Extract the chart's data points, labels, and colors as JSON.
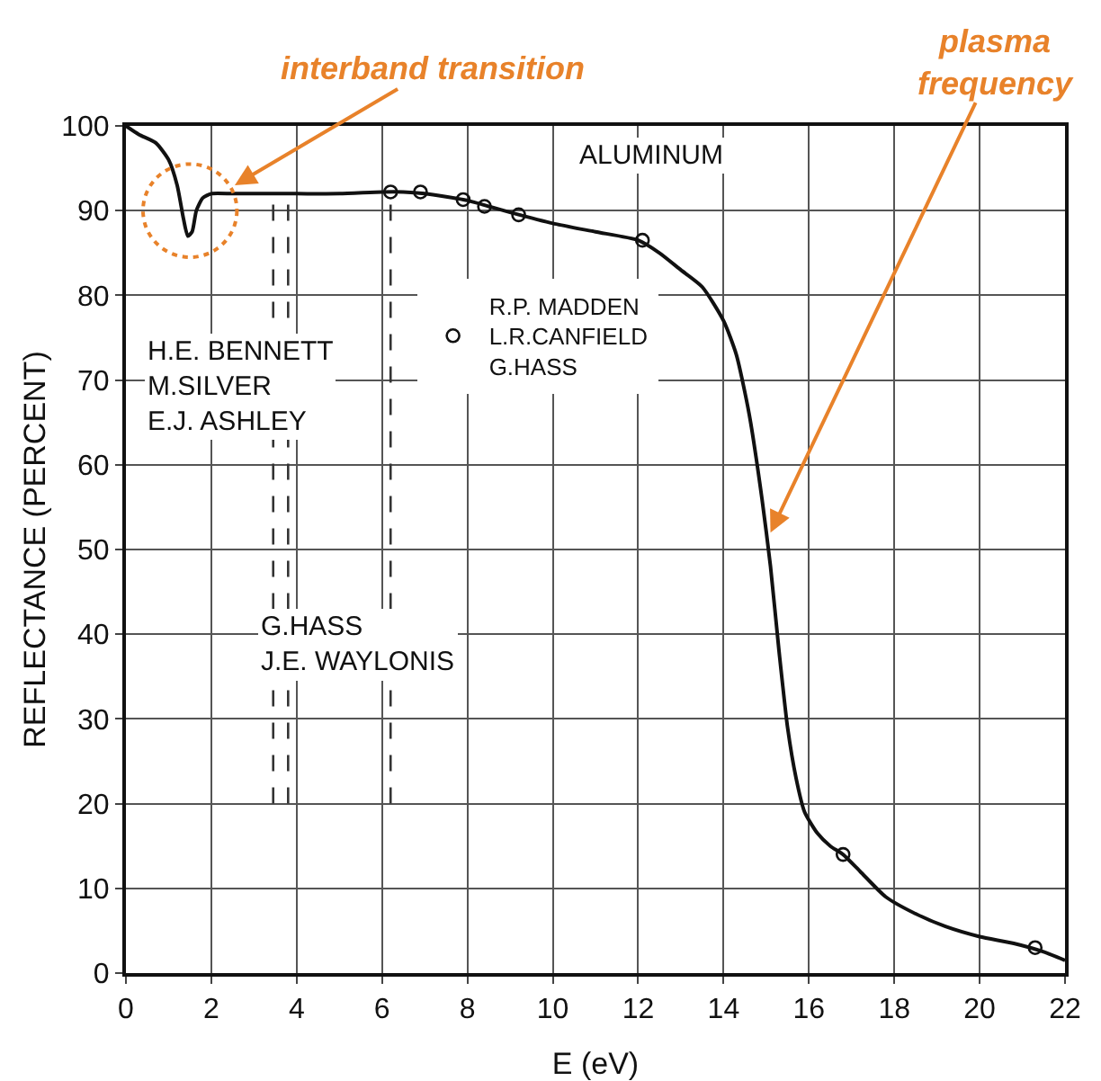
{
  "chart_data": {
    "type": "line",
    "title": "ALUMINUM",
    "xlabel": "E (eV)",
    "ylabel": "REFLECTANCE (PERCENT)",
    "xlim": [
      0,
      22
    ],
    "xticks": [
      0,
      2,
      4,
      6,
      8,
      10,
      12,
      14,
      16,
      18,
      20,
      22
    ],
    "ylim": [
      0,
      100
    ],
    "yticks": [
      0,
      10,
      20,
      30,
      40,
      50,
      60,
      70,
      80,
      90,
      100
    ],
    "grid": true,
    "legend": "top",
    "line_style": "solid",
    "series": [
      {
        "color": "#111111",
        "x": [
          0,
          0.3,
          0.7,
          1,
          1.2,
          1.35,
          1.45,
          1.55,
          1.65,
          1.8,
          2,
          2.5,
          3,
          4,
          5,
          6,
          6.5,
          7,
          8,
          8.5,
          9,
          10,
          11,
          12,
          12.5,
          13,
          13.5,
          14,
          14.3,
          14.6,
          14.9,
          15.1,
          15.3,
          15.5,
          15.7,
          15.9,
          16.2,
          16.5,
          16.8,
          17.2,
          17.8,
          18.5,
          19.2,
          20,
          20.8,
          21.5,
          22
        ],
        "values": [
          100,
          99,
          98,
          96,
          93,
          89,
          87,
          87.5,
          90,
          91.5,
          92,
          92,
          92,
          92,
          92,
          92.2,
          92.2,
          92,
          91.2,
          90.5,
          89.8,
          88.5,
          87.5,
          86.5,
          85,
          83,
          81,
          77,
          73,
          66,
          56,
          48,
          38,
          29,
          23,
          19,
          16.5,
          15,
          14,
          12,
          9,
          7,
          5.5,
          4.3,
          3.5,
          2.5,
          1.5
        ]
      },
      {
        "type": "scatter",
        "marker": "circle",
        "name": "R.P. MADDEN\nL.R.CANFIELD\nG.HASS",
        "color": "#111111",
        "x": [
          6.2,
          6.9,
          7.9,
          8.4,
          9.2,
          12.1,
          16.8,
          21.3
        ],
        "values": [
          92.2,
          92.2,
          91.3,
          90.5,
          89.5,
          86.5,
          14,
          3
        ]
      }
    ],
    "ref_lines": [
      {
        "axis": "x",
        "value": 3.45,
        "line_style": "dashed",
        "color": "#333333"
      },
      {
        "axis": "x",
        "value": 3.8,
        "line_style": "dashed",
        "color": "#333333"
      },
      {
        "axis": "x",
        "value": 6.2,
        "line_style": "dashed",
        "color": "#333333"
      }
    ],
    "annotations": [
      "H.E. BENNETT\nM.SILVER\nE.J. ASHLEY",
      "G.HASS\nJ.E. WAYLONIS",
      {
        "text": "interband transition",
        "x": 2.55,
        "y": 93
      },
      {
        "text": "plasma frequency",
        "x": 15.1,
        "y": 52
      }
    ]
  }
}
